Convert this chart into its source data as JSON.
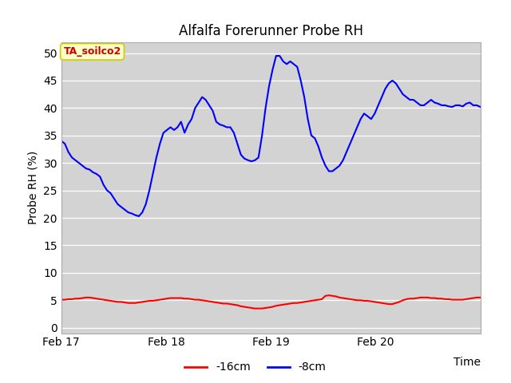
{
  "title": "Alfalfa Forerunner Probe RH",
  "ylabel": "Probe RH (%)",
  "xlabel": "Time",
  "ylim": [
    -1,
    52
  ],
  "yticks": [
    0,
    5,
    10,
    15,
    20,
    25,
    30,
    35,
    40,
    45,
    50
  ],
  "plot_bg_color": "#d3d3d3",
  "title_fontsize": 12,
  "label_fontsize": 10,
  "tick_fontsize": 10,
  "annotation_text": "TA_soilco2",
  "annotation_color": "#cc0000",
  "annotation_bg": "#ffffcc",
  "annotation_edge": "#cccc00",
  "line_red_color": "#ff0000",
  "line_blue_color": "#0000ff",
  "legend_red_label": "-16cm",
  "legend_blue_label": "-8cm",
  "x_tick_labels": [
    "Feb 17",
    "Feb 18",
    "Feb 19",
    "Feb 20"
  ],
  "x_tick_positions": [
    0,
    24,
    48,
    72
  ],
  "total_hours": 96,
  "red_data": [
    5.1,
    5.1,
    5.2,
    5.2,
    5.3,
    5.3,
    5.4,
    5.5,
    5.5,
    5.4,
    5.3,
    5.2,
    5.1,
    5.0,
    4.9,
    4.8,
    4.7,
    4.7,
    4.6,
    4.5,
    4.5,
    4.5,
    4.6,
    4.7,
    4.8,
    4.9,
    4.9,
    5.0,
    5.1,
    5.2,
    5.3,
    5.4,
    5.4,
    5.4,
    5.4,
    5.3,
    5.3,
    5.2,
    5.1,
    5.1,
    5.0,
    4.9,
    4.8,
    4.7,
    4.6,
    4.5,
    4.4,
    4.4,
    4.3,
    4.2,
    4.1,
    3.9,
    3.8,
    3.7,
    3.6,
    3.5,
    3.5,
    3.5,
    3.6,
    3.7,
    3.8,
    4.0,
    4.1,
    4.2,
    4.3,
    4.4,
    4.5,
    4.5,
    4.6,
    4.7,
    4.8,
    4.9,
    5.0,
    5.1,
    5.2,
    5.8,
    5.9,
    5.8,
    5.7,
    5.5,
    5.4,
    5.3,
    5.2,
    5.1,
    5.0,
    5.0,
    4.9,
    4.9,
    4.8,
    4.7,
    4.6,
    4.5,
    4.4,
    4.3,
    4.3,
    4.5,
    4.7,
    5.0,
    5.2,
    5.3,
    5.3,
    5.4,
    5.5,
    5.5,
    5.5,
    5.4,
    5.4,
    5.3,
    5.3,
    5.2,
    5.2,
    5.1,
    5.1,
    5.1,
    5.1,
    5.2,
    5.3,
    5.4,
    5.5,
    5.5
  ],
  "blue_data": [
    34.0,
    33.5,
    32.0,
    31.0,
    30.5,
    30.0,
    29.5,
    29.0,
    28.8,
    28.3,
    28.0,
    27.5,
    26.0,
    25.0,
    24.5,
    23.5,
    22.5,
    22.0,
    21.5,
    21.0,
    20.8,
    20.5,
    20.3,
    21.0,
    22.5,
    25.0,
    28.0,
    31.0,
    33.5,
    35.5,
    36.0,
    36.5,
    36.0,
    36.5,
    37.5,
    35.5,
    37.0,
    38.0,
    40.0,
    41.0,
    42.0,
    41.5,
    40.5,
    39.5,
    37.5,
    37.0,
    36.8,
    36.5,
    36.5,
    35.5,
    33.5,
    31.5,
    30.8,
    30.5,
    30.3,
    30.5,
    31.0,
    35.0,
    40.0,
    44.0,
    47.0,
    49.5,
    49.5,
    48.5,
    48.0,
    48.5,
    48.0,
    47.5,
    45.0,
    42.0,
    38.0,
    35.0,
    34.5,
    33.0,
    31.0,
    29.5,
    28.5,
    28.5,
    29.0,
    29.5,
    30.5,
    32.0,
    33.5,
    35.0,
    36.5,
    38.0,
    39.0,
    38.5,
    38.0,
    39.0,
    40.5,
    42.0,
    43.5,
    44.5,
    45.0,
    44.5,
    43.5,
    42.5,
    42.0,
    41.5,
    41.5,
    41.0,
    40.5,
    40.5,
    41.0,
    41.5,
    41.0,
    40.8,
    40.5,
    40.5,
    40.3,
    40.2,
    40.5,
    40.5,
    40.3,
    40.8,
    41.0,
    40.5,
    40.5,
    40.2
  ]
}
